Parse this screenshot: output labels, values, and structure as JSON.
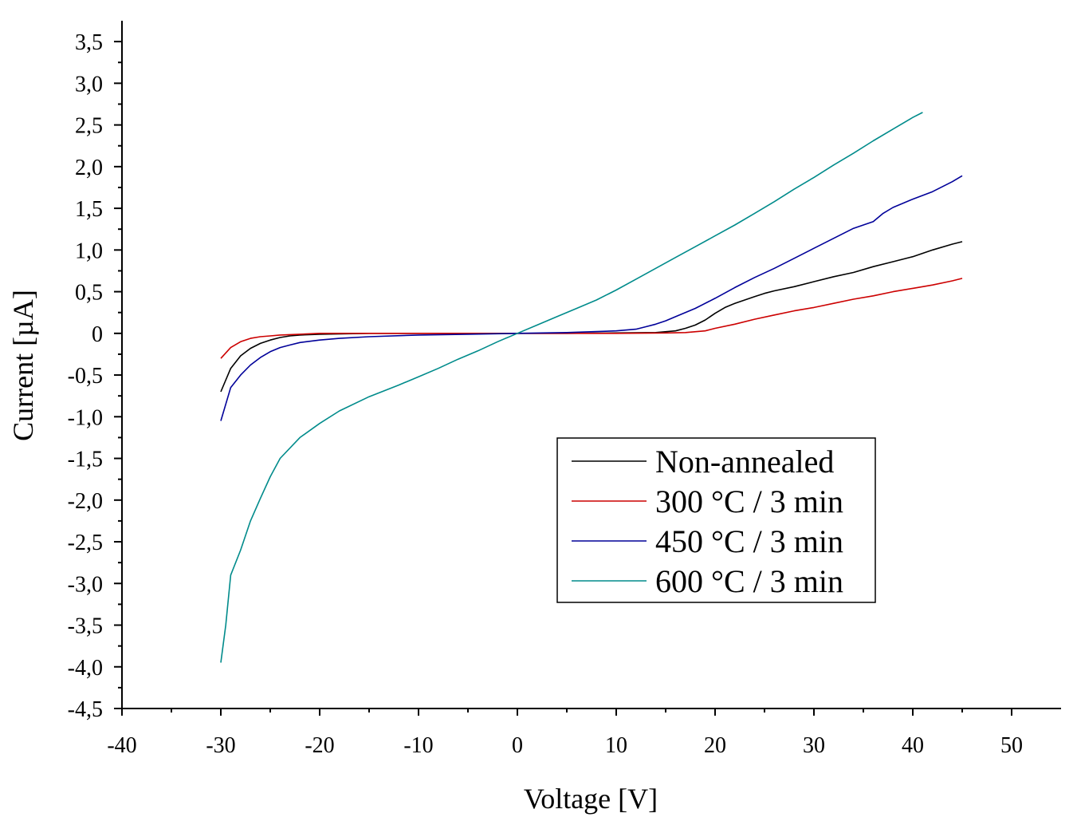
{
  "chart_data": {
    "type": "line",
    "xlabel": "Voltage [V]",
    "ylabel": "Current [µA]",
    "xlim": [
      -40,
      55
    ],
    "ylim": [
      -4.5,
      3.75
    ],
    "x_ticks": [
      -40,
      -30,
      -20,
      -10,
      0,
      10,
      20,
      30,
      40,
      50
    ],
    "x_tick_labels": [
      "-40",
      "-30",
      "-20",
      "-10",
      "0",
      "10",
      "20",
      "30",
      "40",
      "50"
    ],
    "y_ticks": [
      -4.5,
      -4.0,
      -3.5,
      -3.0,
      -2.5,
      -2.0,
      -1.5,
      -1.0,
      -0.5,
      0,
      0.5,
      1.0,
      1.5,
      2.0,
      2.5,
      3.0,
      3.5
    ],
    "y_tick_labels": [
      "-4,5",
      "-4,0",
      "-3,5",
      "-3,0",
      "-2,5",
      "-2,0",
      "-1,5",
      "-1,0",
      "-0,5",
      "0",
      "0,5",
      "1,0",
      "1,5",
      "2,0",
      "2,5",
      "3,0",
      "3,5"
    ],
    "grid": false,
    "legend_position": "lower-right",
    "series": [
      {
        "name": "Non-annealed",
        "color": "#000000",
        "points": [
          [
            -30,
            -0.7
          ],
          [
            -29,
            -0.42
          ],
          [
            -28,
            -0.27
          ],
          [
            -27,
            -0.18
          ],
          [
            -26,
            -0.12
          ],
          [
            -25,
            -0.08
          ],
          [
            -24,
            -0.05
          ],
          [
            -23,
            -0.03
          ],
          [
            -22,
            -0.02
          ],
          [
            -20,
            -0.01
          ],
          [
            -15,
            0
          ],
          [
            -10,
            0
          ],
          [
            -5,
            0
          ],
          [
            0,
            0
          ],
          [
            5,
            0
          ],
          [
            10,
            0.005
          ],
          [
            14,
            0.01
          ],
          [
            16,
            0.03
          ],
          [
            17,
            0.06
          ],
          [
            18,
            0.1
          ],
          [
            19,
            0.16
          ],
          [
            20,
            0.24
          ],
          [
            21,
            0.31
          ],
          [
            22,
            0.36
          ],
          [
            23,
            0.4
          ],
          [
            24,
            0.44
          ],
          [
            25,
            0.48
          ],
          [
            26,
            0.51
          ],
          [
            28,
            0.56
          ],
          [
            30,
            0.62
          ],
          [
            32,
            0.68
          ],
          [
            34,
            0.73
          ],
          [
            36,
            0.8
          ],
          [
            38,
            0.86
          ],
          [
            40,
            0.92
          ],
          [
            42,
            1.0
          ],
          [
            44,
            1.07
          ],
          [
            45,
            1.1
          ]
        ]
      },
      {
        "name": "300 °C / 3 min",
        "color": "#cc0000",
        "points": [
          [
            -30,
            -0.3
          ],
          [
            -29,
            -0.17
          ],
          [
            -28,
            -0.1
          ],
          [
            -27,
            -0.06
          ],
          [
            -26,
            -0.04
          ],
          [
            -25,
            -0.03
          ],
          [
            -24,
            -0.02
          ],
          [
            -22,
            -0.01
          ],
          [
            -20,
            0
          ],
          [
            -10,
            0
          ],
          [
            0,
            0
          ],
          [
            10,
            0
          ],
          [
            15,
            0.005
          ],
          [
            17,
            0.01
          ],
          [
            19,
            0.03
          ],
          [
            20,
            0.06
          ],
          [
            22,
            0.11
          ],
          [
            24,
            0.17
          ],
          [
            26,
            0.22
          ],
          [
            28,
            0.27
          ],
          [
            30,
            0.31
          ],
          [
            32,
            0.36
          ],
          [
            34,
            0.41
          ],
          [
            36,
            0.45
          ],
          [
            38,
            0.5
          ],
          [
            40,
            0.54
          ],
          [
            42,
            0.58
          ],
          [
            44,
            0.63
          ],
          [
            45,
            0.66
          ]
        ]
      },
      {
        "name": "450 °C / 3 min",
        "color": "#000099",
        "points": [
          [
            -30,
            -1.05
          ],
          [
            -29,
            -0.65
          ],
          [
            -28,
            -0.5
          ],
          [
            -27,
            -0.38
          ],
          [
            -26,
            -0.29
          ],
          [
            -25,
            -0.22
          ],
          [
            -24,
            -0.17
          ],
          [
            -23,
            -0.14
          ],
          [
            -22,
            -0.11
          ],
          [
            -20,
            -0.08
          ],
          [
            -18,
            -0.06
          ],
          [
            -15,
            -0.04
          ],
          [
            -10,
            -0.02
          ],
          [
            -5,
            -0.01
          ],
          [
            0,
            0
          ],
          [
            5,
            0.01
          ],
          [
            10,
            0.03
          ],
          [
            12,
            0.05
          ],
          [
            13,
            0.08
          ],
          [
            14,
            0.11
          ],
          [
            15,
            0.15
          ],
          [
            16,
            0.2
          ],
          [
            18,
            0.3
          ],
          [
            20,
            0.42
          ],
          [
            22,
            0.55
          ],
          [
            24,
            0.67
          ],
          [
            26,
            0.78
          ],
          [
            28,
            0.9
          ],
          [
            30,
            1.02
          ],
          [
            32,
            1.14
          ],
          [
            34,
            1.26
          ],
          [
            35,
            1.3
          ],
          [
            36,
            1.34
          ],
          [
            37,
            1.44
          ],
          [
            38,
            1.51
          ],
          [
            40,
            1.61
          ],
          [
            42,
            1.7
          ],
          [
            44,
            1.82
          ],
          [
            45,
            1.89
          ]
        ]
      },
      {
        "name": "600 °C / 3 min",
        "color": "#008b8b",
        "points": [
          [
            -30,
            -3.95
          ],
          [
            -29.5,
            -3.5
          ],
          [
            -29,
            -2.9
          ],
          [
            -28,
            -2.6
          ],
          [
            -27,
            -2.25
          ],
          [
            -26,
            -1.98
          ],
          [
            -25,
            -1.72
          ],
          [
            -24,
            -1.5
          ],
          [
            -22,
            -1.25
          ],
          [
            -20,
            -1.08
          ],
          [
            -18,
            -0.93
          ],
          [
            -15,
            -0.76
          ],
          [
            -12,
            -0.62
          ],
          [
            -10,
            -0.52
          ],
          [
            -8,
            -0.42
          ],
          [
            -6,
            -0.31
          ],
          [
            -4,
            -0.21
          ],
          [
            -2,
            -0.1
          ],
          [
            0,
            0
          ],
          [
            2,
            0.1
          ],
          [
            4,
            0.2
          ],
          [
            6,
            0.3
          ],
          [
            8,
            0.4
          ],
          [
            10,
            0.52
          ],
          [
            12,
            0.65
          ],
          [
            14,
            0.78
          ],
          [
            16,
            0.91
          ],
          [
            18,
            1.04
          ],
          [
            20,
            1.17
          ],
          [
            22,
            1.3
          ],
          [
            24,
            1.44
          ],
          [
            26,
            1.58
          ],
          [
            28,
            1.73
          ],
          [
            30,
            1.87
          ],
          [
            32,
            2.02
          ],
          [
            34,
            2.16
          ],
          [
            36,
            2.31
          ],
          [
            38,
            2.45
          ],
          [
            40,
            2.59
          ],
          [
            41,
            2.65
          ]
        ]
      }
    ]
  }
}
